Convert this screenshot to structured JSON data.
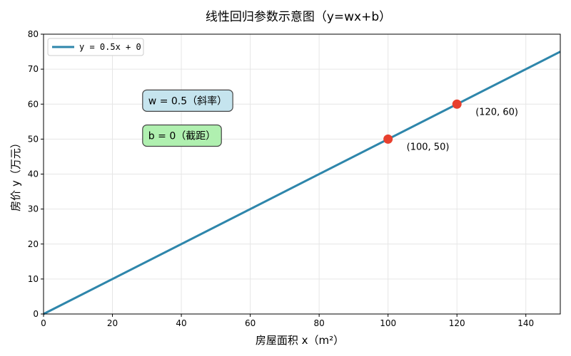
{
  "chart_data": {
    "type": "line",
    "title": "线性回归参数示意图（y=wx+b）",
    "xlabel": "房屋面积 x（m²）",
    "ylabel": "房价 y（万元）",
    "xlim": [
      0,
      150
    ],
    "ylim": [
      0,
      80
    ],
    "x_ticks": [
      0,
      20,
      40,
      60,
      80,
      100,
      120,
      140
    ],
    "y_ticks": [
      0,
      10,
      20,
      30,
      40,
      50,
      60,
      70,
      80
    ],
    "grid": true,
    "legend_position": "top-left",
    "series": [
      {
        "name": "y = 0.5x + 0",
        "x": [
          0,
          150
        ],
        "y": [
          0,
          75
        ],
        "color": "#2e86ab"
      }
    ],
    "points": [
      {
        "x": 100,
        "y": 50,
        "label": "(100, 50)",
        "color": "#e8402e"
      },
      {
        "x": 120,
        "y": 60,
        "label": "(120, 60)",
        "color": "#e8402e"
      }
    ],
    "annotations": [
      {
        "text": "w = 0.5（斜率）",
        "x": 30,
        "y": 61,
        "bg": "#c5e4ee"
      },
      {
        "text": "b = 0（截距）",
        "x": 30,
        "y": 51,
        "bg": "#b0f0b0"
      }
    ]
  }
}
